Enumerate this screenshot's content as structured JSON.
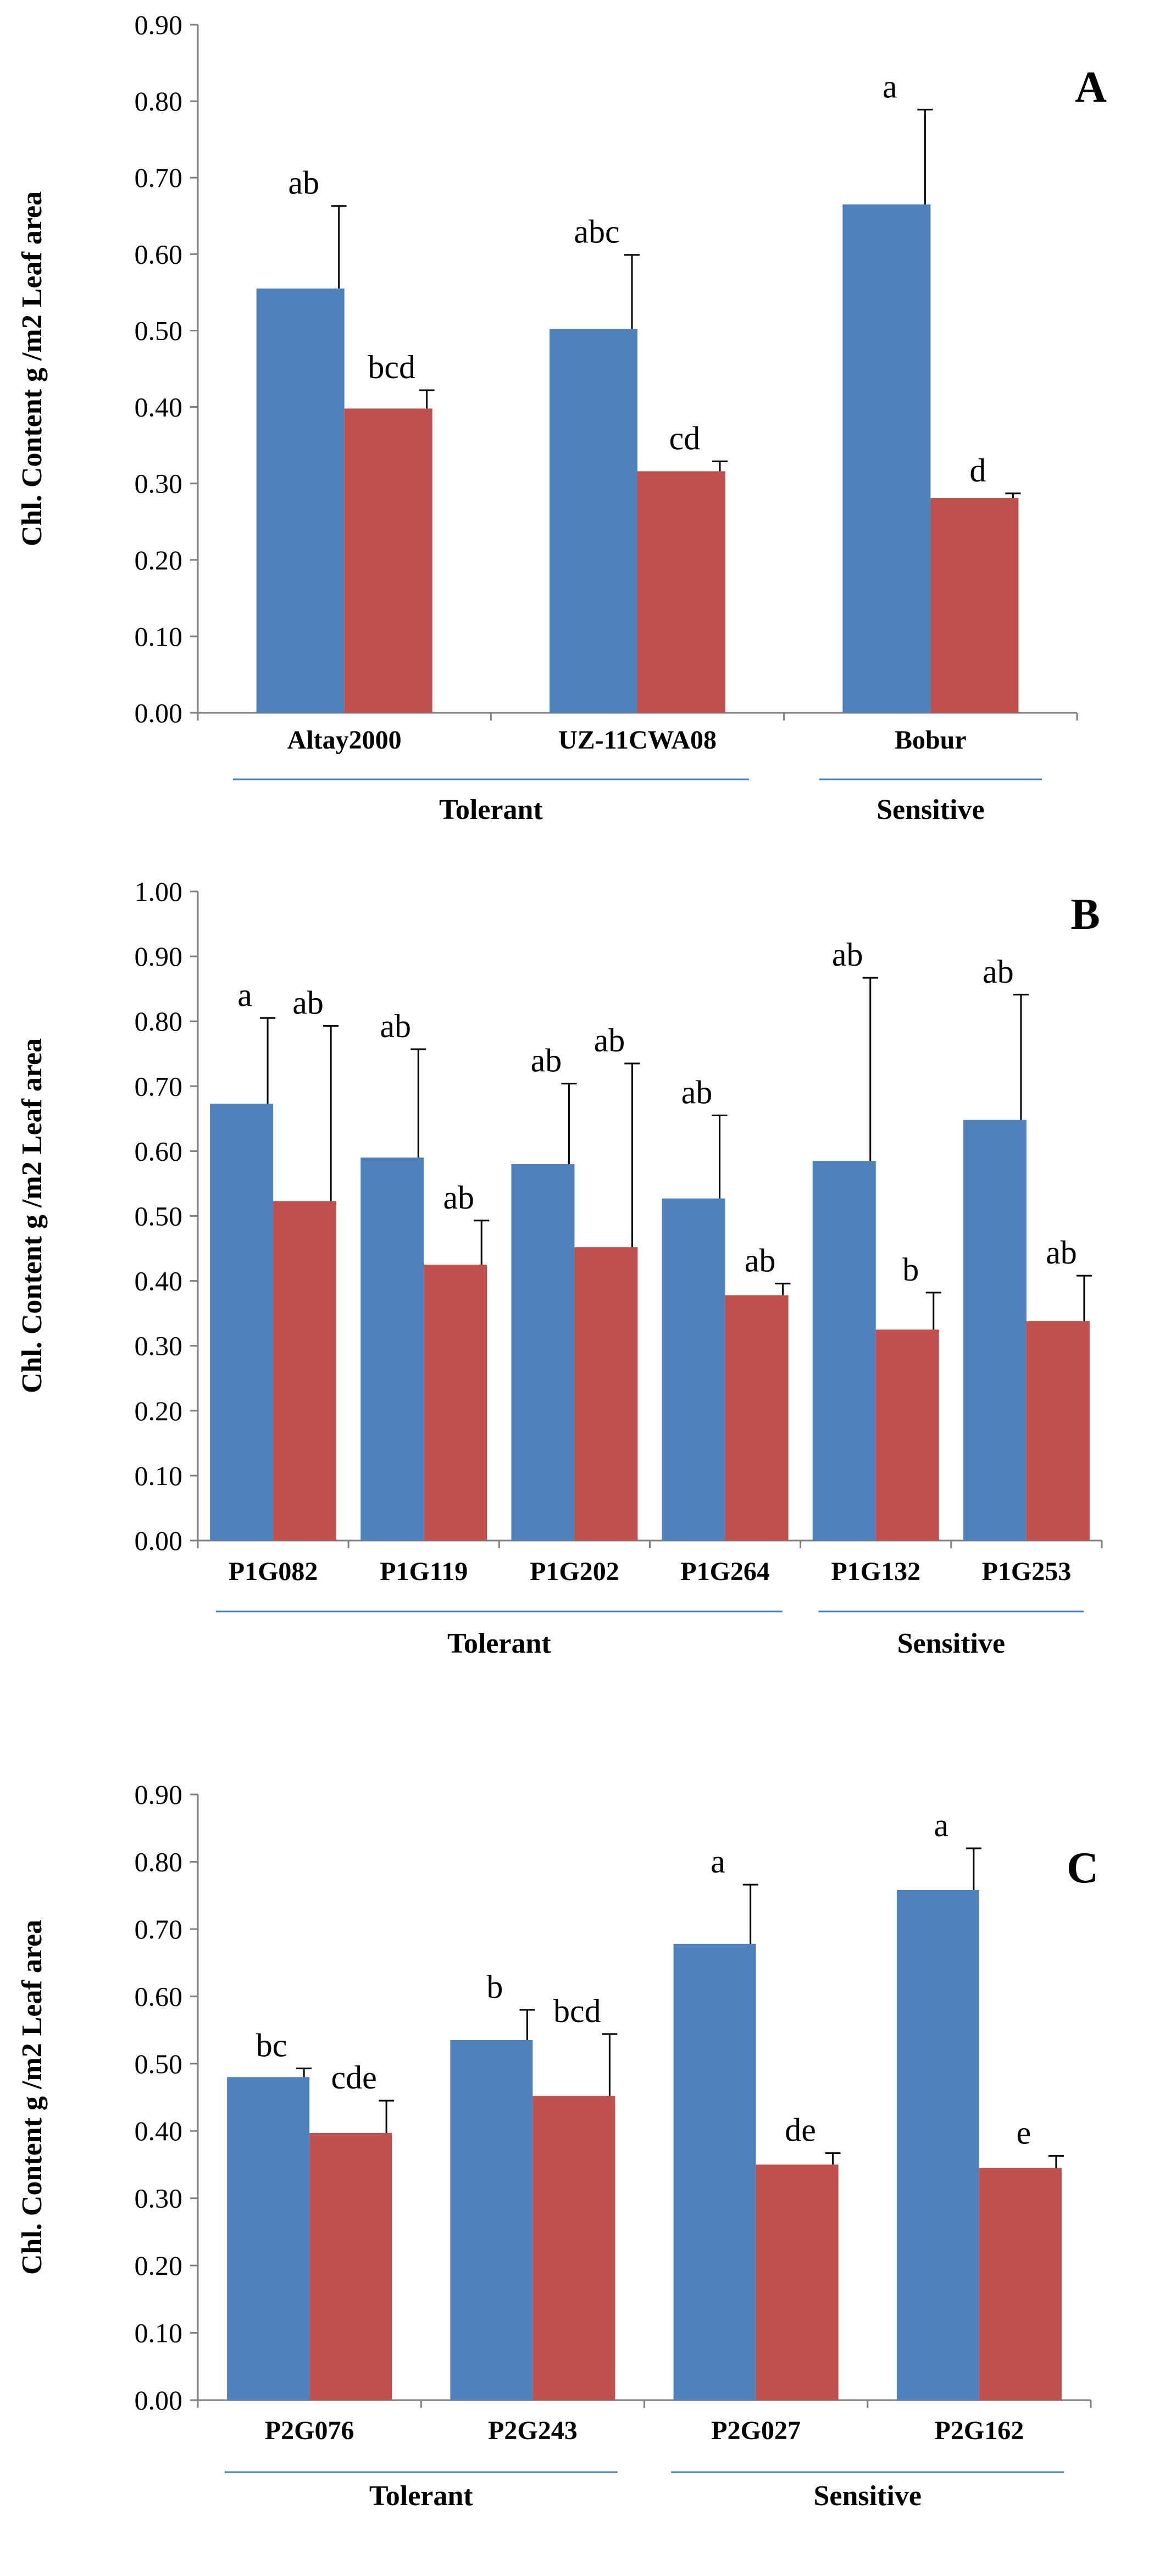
{
  "chart_data": [
    {
      "type": "bar",
      "panel_label": "A",
      "ylabel": "Chl. Content  g /m2 Leaf area",
      "ylim": [
        0,
        0.9
      ],
      "yticks": [
        "0.00",
        "0.10",
        "0.20",
        "0.30",
        "0.40",
        "0.50",
        "0.60",
        "0.70",
        "0.80",
        "0.90"
      ],
      "categories": [
        "Altay2000",
        "UZ-11CWA08",
        "Bobur"
      ],
      "series": [
        {
          "name": "blue",
          "color": "#4F81BD",
          "values": [
            0.555,
            0.502,
            0.665
          ],
          "errors": [
            0.108,
            0.097,
            0.124
          ],
          "labels": [
            "ab",
            "abc",
            "a"
          ]
        },
        {
          "name": "red",
          "color": "#C0504D",
          "values": [
            0.398,
            0.316,
            0.281
          ],
          "errors": [
            0.024,
            0.013,
            0.006
          ],
          "labels": [
            "bcd",
            "cd",
            "d"
          ]
        }
      ],
      "groups": [
        {
          "name": "Tolerant",
          "from": 0,
          "to": 1
        },
        {
          "name": "Sensitive",
          "from": 2,
          "to": 2
        }
      ]
    },
    {
      "type": "bar",
      "panel_label": "B",
      "ylabel": "Chl. Content  g /m2 Leaf area",
      "ylim": [
        0,
        1.0
      ],
      "yticks": [
        "0.00",
        "0.10",
        "0.20",
        "0.30",
        "0.40",
        "0.50",
        "0.60",
        "0.70",
        "0.80",
        "0.90",
        "1.00"
      ],
      "categories": [
        "P1G082",
        "P1G119",
        "P1G202",
        "P1G264",
        "P1G132",
        "P1G253"
      ],
      "series": [
        {
          "name": "blue",
          "color": "#4F81BD",
          "values": [
            0.673,
            0.59,
            0.58,
            0.527,
            0.585,
            0.648
          ],
          "errors": [
            0.132,
            0.167,
            0.124,
            0.128,
            0.282,
            0.193
          ],
          "labels": [
            "a",
            "ab",
            "ab",
            "ab",
            "ab",
            "ab"
          ]
        },
        {
          "name": "red",
          "color": "#C0504D",
          "values": [
            0.523,
            0.425,
            0.452,
            0.378,
            0.325,
            0.338
          ],
          "errors": [
            0.27,
            0.068,
            0.283,
            0.018,
            0.057,
            0.07
          ],
          "labels": [
            "ab",
            "ab",
            "ab",
            "ab",
            "b",
            "ab"
          ]
        }
      ],
      "groups": [
        {
          "name": "Tolerant",
          "from": 0,
          "to": 3
        },
        {
          "name": "Sensitive",
          "from": 4,
          "to": 5
        }
      ]
    },
    {
      "type": "bar",
      "panel_label": "C",
      "ylabel": "Chl. Content  g /m2 Leaf area",
      "ylim": [
        0,
        0.9
      ],
      "yticks": [
        "0.00",
        "0.10",
        "0.20",
        "0.30",
        "0.40",
        "0.50",
        "0.60",
        "0.70",
        "0.80",
        "0.90"
      ],
      "categories": [
        "P2G076",
        "P2G243",
        "P2G027",
        "P2G162"
      ],
      "series": [
        {
          "name": "blue",
          "color": "#4F81BD",
          "values": [
            0.48,
            0.535,
            0.678,
            0.758
          ],
          "errors": [
            0.013,
            0.045,
            0.088,
            0.062
          ],
          "labels": [
            "bc",
            "b",
            "a",
            "a"
          ]
        },
        {
          "name": "red",
          "color": "#C0504D",
          "values": [
            0.397,
            0.452,
            0.35,
            0.345
          ],
          "errors": [
            0.048,
            0.092,
            0.017,
            0.018
          ],
          "labels": [
            "cde",
            "bcd",
            "de",
            "e"
          ]
        }
      ],
      "groups": [
        {
          "name": "Tolerant",
          "from": 0,
          "to": 1
        },
        {
          "name": "Sensitive",
          "from": 2,
          "to": 3
        }
      ]
    }
  ]
}
